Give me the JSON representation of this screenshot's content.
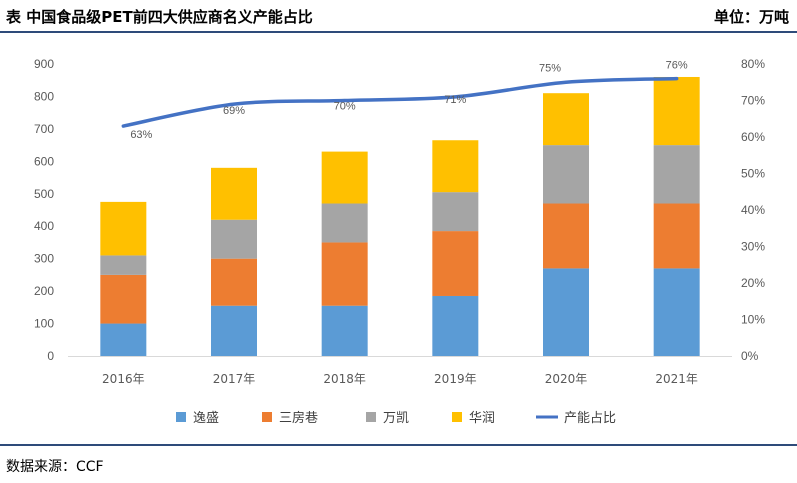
{
  "header": {
    "title": "表  中国食品级PET前四大供应商名义产能占比",
    "unit": "单位：万吨"
  },
  "footer": {
    "source": "数据来源：CCF"
  },
  "chart_data": {
    "type": "bar",
    "stacked": true,
    "categories": [
      "2016年",
      "2017年",
      "2018年",
      "2019年",
      "2020年",
      "2021年"
    ],
    "series": [
      {
        "name": "逸盛",
        "color": "#5b9bd5",
        "values": [
          100,
          155,
          155,
          185,
          270,
          270
        ]
      },
      {
        "name": "三房巷",
        "color": "#ed7d31",
        "values": [
          150,
          145,
          195,
          200,
          200,
          200
        ]
      },
      {
        "name": "万凯",
        "color": "#a5a5a5",
        "values": [
          60,
          120,
          120,
          120,
          180,
          180
        ]
      },
      {
        "name": "华润",
        "color": "#ffc000",
        "values": [
          165,
          160,
          160,
          160,
          160,
          210
        ]
      }
    ],
    "line": {
      "name": "产能占比",
      "color": "#4472c4",
      "values": [
        0.63,
        0.69,
        0.7,
        0.71,
        0.75,
        0.76
      ],
      "labels": [
        "63%",
        "69%",
        "70%",
        "71%",
        "75%",
        "76%"
      ]
    },
    "y_left": {
      "ylim": [
        0,
        900
      ],
      "ticks": [
        "0",
        "100",
        "200",
        "300",
        "400",
        "500",
        "600",
        "700",
        "800",
        "900"
      ]
    },
    "y_right": {
      "ylim": [
        0,
        0.8
      ],
      "ticks": [
        "0%",
        "10%",
        "20%",
        "30%",
        "40%",
        "50%",
        "60%",
        "70%",
        "80%"
      ]
    },
    "legend_position": "bottom"
  }
}
